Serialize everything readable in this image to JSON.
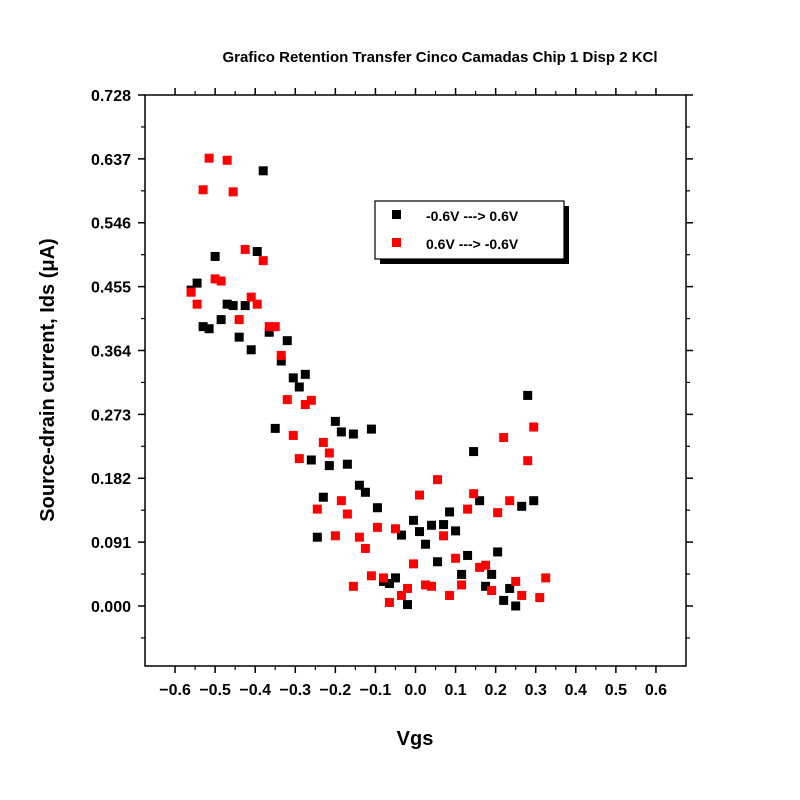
{
  "chart_data": {
    "type": "scatter",
    "title": "Grafico Retention Transfer Cinco Camadas Chip 1 Disp 2 KCl",
    "xlabel": "Vgs",
    "ylabel": "Source-drain current, Ids (μA)",
    "xlim": [
      -0.675,
      0.675
    ],
    "ylim": [
      -0.0855,
      0.728
    ],
    "x_ticks": [
      -0.6,
      -0.5,
      -0.4,
      -0.3,
      -0.2,
      -0.1,
      0.0,
      0.1,
      0.2,
      0.3,
      0.4,
      0.5,
      0.6
    ],
    "x_tick_labels": [
      "−0.6",
      "−0.5",
      "−0.4",
      "−0.3",
      "−0.2",
      "−0.1",
      "0.0",
      "0.1",
      "0.2",
      "0.3",
      "0.4",
      "0.5",
      "0.6"
    ],
    "y_ticks": [
      0.0,
      0.091,
      0.182,
      0.273,
      0.364,
      0.455,
      0.546,
      0.637,
      0.728
    ],
    "y_tick_labels": [
      "0.000",
      "0.091",
      "0.182",
      "0.273",
      "0.364",
      "0.455",
      "0.546",
      "0.637",
      "0.728"
    ],
    "grid": false,
    "legend_position": "upper-center",
    "series": [
      {
        "name": "-0.6V ---> 0.6V",
        "color": "#000000",
        "marker": "square",
        "points": [
          [
            -0.56,
            0.45
          ],
          [
            -0.545,
            0.46
          ],
          [
            -0.53,
            0.398
          ],
          [
            -0.515,
            0.395
          ],
          [
            -0.5,
            0.498
          ],
          [
            -0.485,
            0.408
          ],
          [
            -0.47,
            0.43
          ],
          [
            -0.455,
            0.428
          ],
          [
            -0.44,
            0.383
          ],
          [
            -0.425,
            0.428
          ],
          [
            -0.41,
            0.365
          ],
          [
            -0.395,
            0.505
          ],
          [
            -0.38,
            0.62
          ],
          [
            -0.365,
            0.39
          ],
          [
            -0.35,
            0.253
          ],
          [
            -0.335,
            0.349
          ],
          [
            -0.32,
            0.378
          ],
          [
            -0.305,
            0.325
          ],
          [
            -0.29,
            0.312
          ],
          [
            -0.275,
            0.33
          ],
          [
            -0.26,
            0.208
          ],
          [
            -0.245,
            0.098
          ],
          [
            -0.23,
            0.155
          ],
          [
            -0.215,
            0.2
          ],
          [
            -0.2,
            0.263
          ],
          [
            -0.185,
            0.248
          ],
          [
            -0.17,
            0.202
          ],
          [
            -0.155,
            0.245
          ],
          [
            -0.14,
            0.172
          ],
          [
            -0.125,
            0.162
          ],
          [
            -0.11,
            0.252
          ],
          [
            -0.095,
            0.14
          ],
          [
            -0.08,
            0.035
          ],
          [
            -0.065,
            0.032
          ],
          [
            -0.05,
            0.04
          ],
          [
            -0.035,
            0.101
          ],
          [
            -0.02,
            0.002
          ],
          [
            -0.005,
            0.122
          ],
          [
            0.01,
            0.106
          ],
          [
            0.025,
            0.088
          ],
          [
            0.04,
            0.115
          ],
          [
            0.055,
            0.063
          ],
          [
            0.07,
            0.116
          ],
          [
            0.085,
            0.134
          ],
          [
            0.1,
            0.107
          ],
          [
            0.115,
            0.045
          ],
          [
            0.13,
            0.072
          ],
          [
            0.145,
            0.22
          ],
          [
            0.16,
            0.15
          ],
          [
            0.175,
            0.028
          ],
          [
            0.19,
            0.045
          ],
          [
            0.205,
            0.077
          ],
          [
            0.22,
            0.008
          ],
          [
            0.235,
            0.025
          ],
          [
            0.25,
            0.0
          ],
          [
            0.265,
            0.142
          ],
          [
            0.28,
            0.3
          ],
          [
            0.295,
            0.15
          ]
        ]
      },
      {
        "name": "0.6V ---> -0.6V",
        "color": "#ff0000",
        "marker": "square",
        "points": [
          [
            -0.56,
            0.447
          ],
          [
            -0.545,
            0.43
          ],
          [
            -0.53,
            0.593
          ],
          [
            -0.515,
            0.638
          ],
          [
            -0.5,
            0.466
          ],
          [
            -0.485,
            0.463
          ],
          [
            -0.47,
            0.635
          ],
          [
            -0.455,
            0.59
          ],
          [
            -0.44,
            0.408
          ],
          [
            -0.425,
            0.508
          ],
          [
            -0.41,
            0.44
          ],
          [
            -0.395,
            0.43
          ],
          [
            -0.38,
            0.492
          ],
          [
            -0.365,
            0.398
          ],
          [
            -0.35,
            0.398
          ],
          [
            -0.335,
            0.357
          ],
          [
            -0.32,
            0.294
          ],
          [
            -0.305,
            0.243
          ],
          [
            -0.29,
            0.21
          ],
          [
            -0.275,
            0.287
          ],
          [
            -0.26,
            0.293
          ],
          [
            -0.245,
            0.138
          ],
          [
            -0.23,
            0.233
          ],
          [
            -0.215,
            0.218
          ],
          [
            -0.2,
            0.1
          ],
          [
            -0.185,
            0.15
          ],
          [
            -0.17,
            0.131
          ],
          [
            -0.155,
            0.028
          ],
          [
            -0.14,
            0.098
          ],
          [
            -0.125,
            0.082
          ],
          [
            -0.11,
            0.043
          ],
          [
            -0.095,
            0.112
          ],
          [
            -0.08,
            0.04
          ],
          [
            -0.065,
            0.005
          ],
          [
            -0.05,
            0.11
          ],
          [
            -0.035,
            0.015
          ],
          [
            -0.02,
            0.025
          ],
          [
            -0.005,
            0.06
          ],
          [
            0.01,
            0.158
          ],
          [
            0.025,
            0.03
          ],
          [
            0.04,
            0.028
          ],
          [
            0.055,
            0.18
          ],
          [
            0.07,
            0.1
          ],
          [
            0.085,
            0.015
          ],
          [
            0.1,
            0.068
          ],
          [
            0.115,
            0.03
          ],
          [
            0.13,
            0.138
          ],
          [
            0.145,
            0.16
          ],
          [
            0.16,
            0.055
          ],
          [
            0.175,
            0.058
          ],
          [
            0.19,
            0.022
          ],
          [
            0.205,
            0.133
          ],
          [
            0.22,
            0.24
          ],
          [
            0.235,
            0.15
          ],
          [
            0.25,
            0.035
          ],
          [
            0.265,
            0.015
          ],
          [
            0.28,
            0.207
          ],
          [
            0.295,
            0.255
          ],
          [
            0.31,
            0.012
          ],
          [
            0.325,
            0.04
          ]
        ]
      }
    ]
  }
}
